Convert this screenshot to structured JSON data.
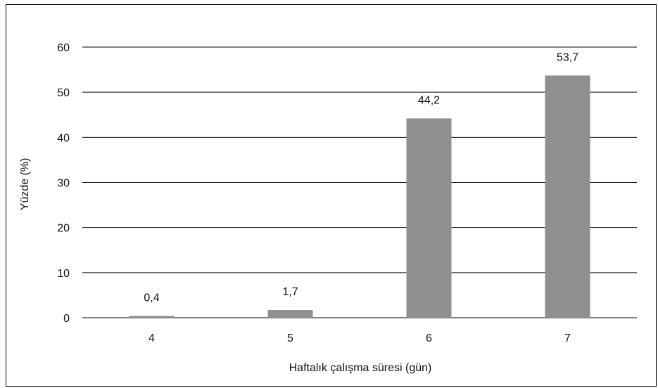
{
  "chart_data": {
    "type": "bar",
    "categories": [
      "4",
      "5",
      "6",
      "7"
    ],
    "values": [
      0.4,
      1.7,
      44.2,
      53.7
    ],
    "value_labels": [
      "0,4",
      "1,7",
      "44,2",
      "53,7"
    ],
    "title": "",
    "xlabel": "Haftalık çalışma süresi (gün)",
    "ylabel": "Yüzde (%)",
    "ylim": [
      0,
      60
    ],
    "yticks": [
      "0",
      "10",
      "20",
      "30",
      "40",
      "50",
      "60"
    ],
    "grid": true,
    "legend": "none",
    "bar_color": "#8f8f8f",
    "grid_color": "#000000"
  }
}
